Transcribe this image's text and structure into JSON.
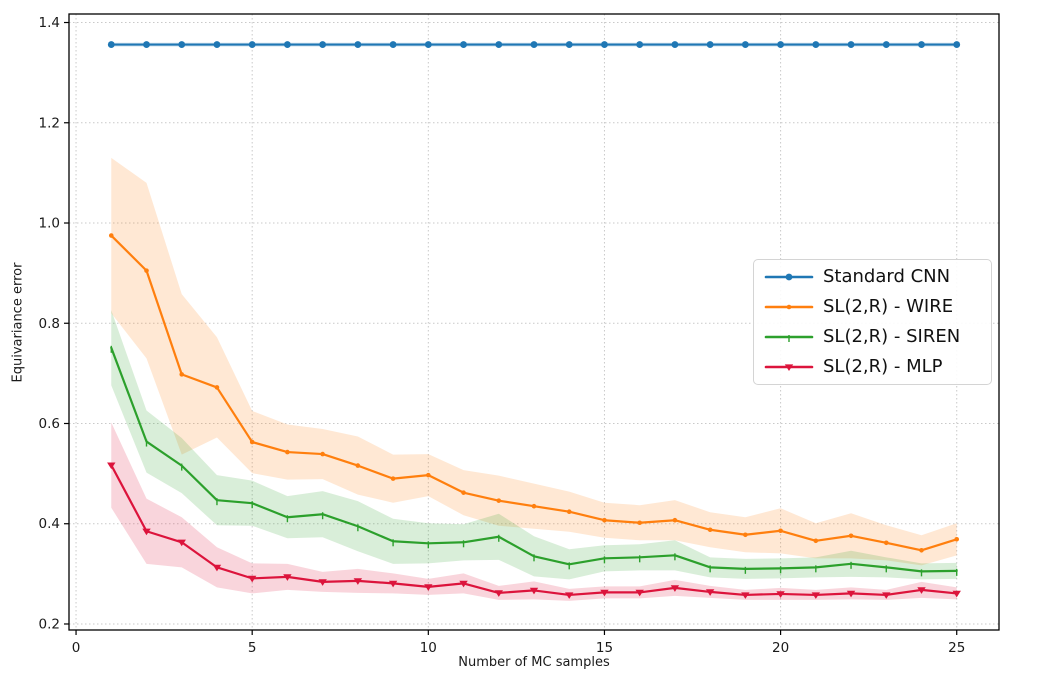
{
  "figure": {
    "background": "#ffffff",
    "plot_border_color": "#000000",
    "grid_color": "#c9c9c9",
    "tick_color": "#1a1a1a"
  },
  "chart_data": {
    "type": "line",
    "title": "",
    "xlabel": "Number of MC samples",
    "ylabel": "Equivariance error",
    "x": [
      1,
      2,
      3,
      4,
      5,
      6,
      7,
      8,
      9,
      10,
      11,
      12,
      13,
      14,
      15,
      16,
      17,
      18,
      19,
      20,
      21,
      22,
      23,
      24,
      25
    ],
    "xlim": [
      -0.2,
      26.2
    ],
    "ylim": [
      0.188,
      1.417
    ],
    "xticks": [
      0,
      5,
      10,
      15,
      20,
      25
    ],
    "yticks": [
      0.2,
      0.4,
      0.6,
      0.8,
      1.0,
      1.2,
      1.4
    ],
    "grid": true,
    "grid_style": "dotted",
    "legend_position": "center-right-inside",
    "band_opacity": 0.18,
    "series": [
      {
        "name": "Standard CNN",
        "color": "#1f77b4",
        "marker": "circle",
        "values": [
          1.356,
          1.356,
          1.356,
          1.356,
          1.356,
          1.356,
          1.356,
          1.356,
          1.356,
          1.356,
          1.356,
          1.356,
          1.356,
          1.356,
          1.356,
          1.356,
          1.356,
          1.356,
          1.356,
          1.356,
          1.356,
          1.356,
          1.356,
          1.356,
          1.356
        ],
        "band": [
          0.004,
          0.004,
          0.004,
          0.004,
          0.004,
          0.004,
          0.004,
          0.004,
          0.004,
          0.004,
          0.004,
          0.004,
          0.004,
          0.004,
          0.004,
          0.004,
          0.004,
          0.004,
          0.004,
          0.004,
          0.004,
          0.004,
          0.004,
          0.004,
          0.004
        ]
      },
      {
        "name": "SL(2,R) - WIRE",
        "color": "#ff7f0e",
        "marker": "dot",
        "values": [
          0.975,
          0.905,
          0.698,
          0.672,
          0.563,
          0.543,
          0.539,
          0.516,
          0.49,
          0.497,
          0.462,
          0.446,
          0.435,
          0.424,
          0.407,
          0.402,
          0.407,
          0.388,
          0.378,
          0.386,
          0.366,
          0.376,
          0.362,
          0.347,
          0.369
        ],
        "band": [
          0.155,
          0.175,
          0.16,
          0.1,
          0.062,
          0.055,
          0.05,
          0.058,
          0.048,
          0.042,
          0.045,
          0.05,
          0.045,
          0.04,
          0.035,
          0.035,
          0.04,
          0.035,
          0.035,
          0.045,
          0.035,
          0.045,
          0.035,
          0.03,
          0.032
        ]
      },
      {
        "name": "SL(2,R) - SIREN",
        "color": "#2ca02c",
        "marker": "tick",
        "values": [
          0.751,
          0.564,
          0.516,
          0.447,
          0.441,
          0.413,
          0.419,
          0.395,
          0.365,
          0.361,
          0.363,
          0.374,
          0.335,
          0.319,
          0.331,
          0.333,
          0.337,
          0.313,
          0.31,
          0.311,
          0.313,
          0.32,
          0.313,
          0.305,
          0.306
        ],
        "band": [
          0.075,
          0.062,
          0.055,
          0.05,
          0.045,
          0.042,
          0.046,
          0.05,
          0.045,
          0.04,
          0.036,
          0.046,
          0.04,
          0.03,
          0.026,
          0.026,
          0.03,
          0.02,
          0.02,
          0.02,
          0.02,
          0.026,
          0.02,
          0.016,
          0.016
        ]
      },
      {
        "name": "SL(2,R) - MLP",
        "color": "#dc143c",
        "marker": "triangle-down",
        "values": [
          0.517,
          0.385,
          0.363,
          0.313,
          0.291,
          0.294,
          0.284,
          0.286,
          0.281,
          0.274,
          0.281,
          0.262,
          0.267,
          0.258,
          0.263,
          0.263,
          0.272,
          0.264,
          0.258,
          0.26,
          0.258,
          0.261,
          0.258,
          0.268,
          0.261
        ],
        "band": [
          0.085,
          0.065,
          0.05,
          0.04,
          0.03,
          0.026,
          0.02,
          0.024,
          0.02,
          0.016,
          0.02,
          0.014,
          0.018,
          0.012,
          0.012,
          0.012,
          0.016,
          0.012,
          0.01,
          0.012,
          0.01,
          0.012,
          0.01,
          0.016,
          0.012
        ]
      }
    ]
  }
}
